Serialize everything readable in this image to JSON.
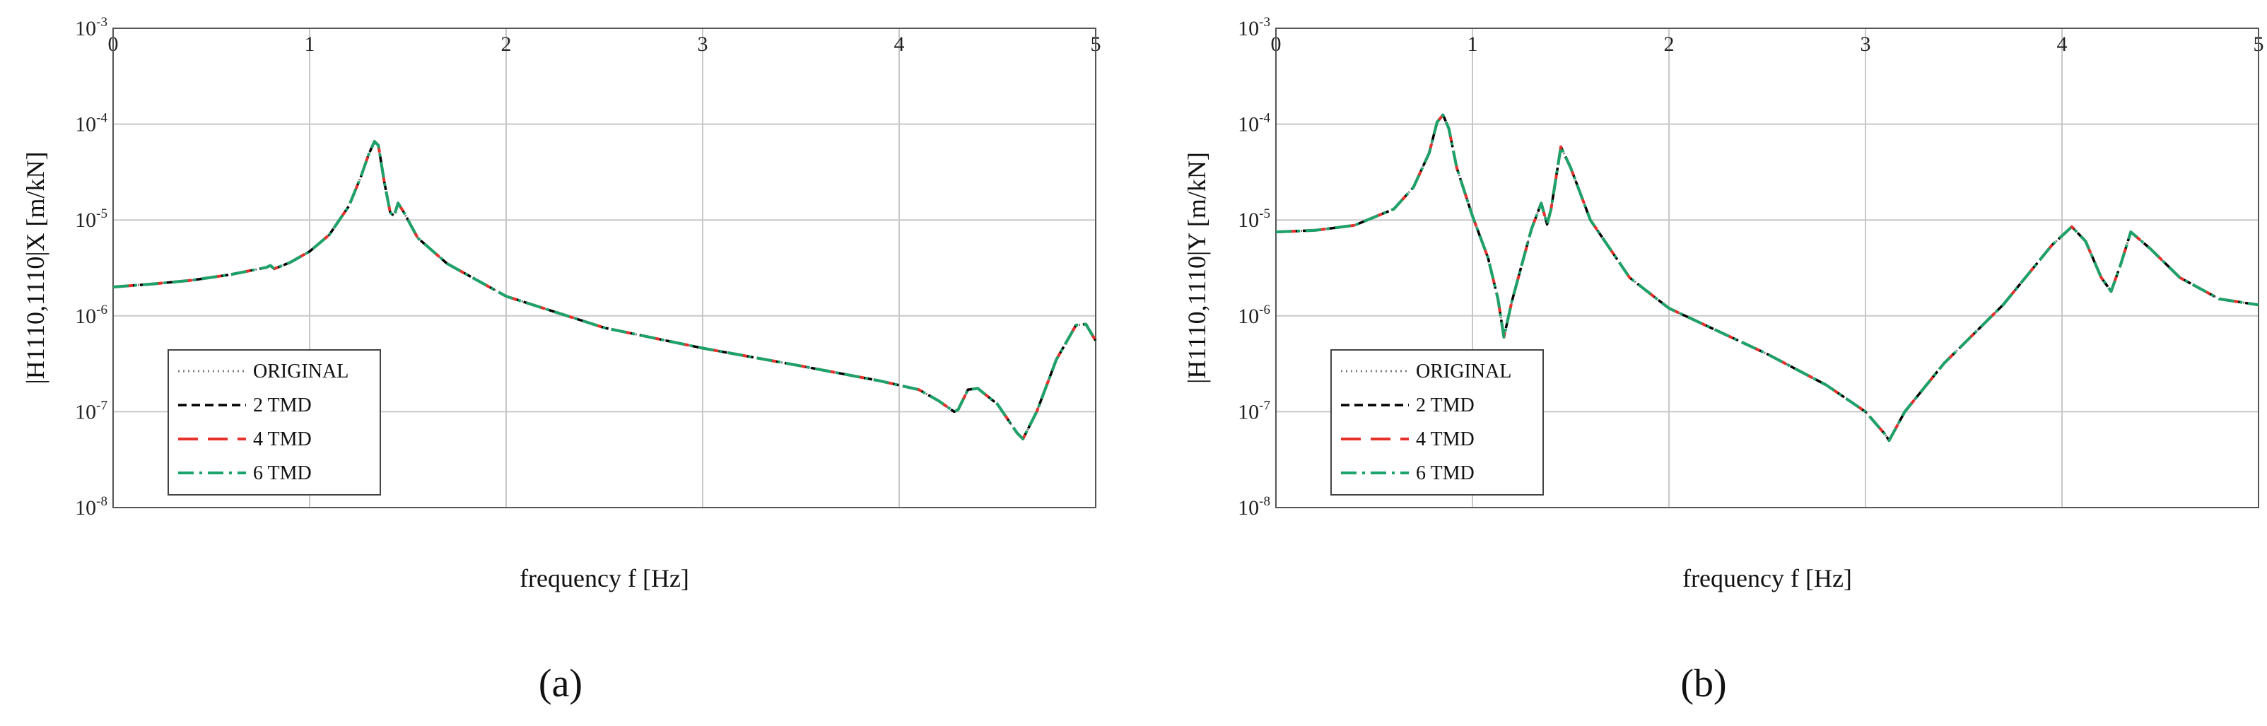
{
  "figure": {
    "panel_labels": [
      "(a)",
      "(b)"
    ]
  },
  "chart_data": [
    {
      "type": "line",
      "panel": "(a)",
      "title": "",
      "xlabel": "frequency f [Hz]",
      "ylabel": "|H1110,1110|X  [m/kN]",
      "xlim": [
        0,
        5
      ],
      "ylim": [
        1e-08,
        0.001
      ],
      "yscale": "log",
      "xticks": [
        "0",
        "1",
        "2",
        "3",
        "4",
        "5"
      ],
      "yticks": [
        {
          "base": "10",
          "exp": "-3"
        },
        {
          "base": "10",
          "exp": "-4"
        },
        {
          "base": "10",
          "exp": "-5"
        },
        {
          "base": "10",
          "exp": "-6"
        },
        {
          "base": "10",
          "exp": "-7"
        },
        {
          "base": "10",
          "exp": "-8"
        }
      ],
      "grid": true,
      "legend_position": "bottom-left",
      "series": [
        {
          "name": "ORIGINAL",
          "color": "#7a7a7a",
          "style": "dotted"
        },
        {
          "name": "2 TMD",
          "color": "#000000",
          "style": "dashed"
        },
        {
          "name": "4 TMD",
          "color": "#e8302a",
          "style": "long-dash"
        },
        {
          "name": "6 TMD",
          "color": "#1aa36b",
          "style": "dash-dot"
        }
      ],
      "x": [
        0,
        0.2,
        0.4,
        0.6,
        0.78,
        0.8,
        0.82,
        0.9,
        1.0,
        1.1,
        1.2,
        1.26,
        1.3,
        1.33,
        1.35,
        1.38,
        1.41,
        1.43,
        1.45,
        1.48,
        1.55,
        1.7,
        2.0,
        2.5,
        3.0,
        3.5,
        3.9,
        4.1,
        4.2,
        4.28,
        4.3,
        4.35,
        4.4,
        4.5,
        4.6,
        4.63,
        4.7,
        4.8,
        4.9,
        4.95,
        5.0
      ],
      "values": [
        2e-06,
        2.15e-06,
        2.35e-06,
        2.7e-06,
        3.2e-06,
        3.35e-06,
        3.1e-06,
        3.6e-06,
        4.7e-06,
        7e-06,
        1.4e-05,
        2.8e-05,
        4.8e-05,
        6.6e-05,
        6e-05,
        2.5e-05,
        1.2e-05,
        1.1e-05,
        1.5e-05,
        1.2e-05,
        6.5e-06,
        3.5e-06,
        1.6e-06,
        7.5e-07,
        4.6e-07,
        3e-07,
        2.1e-07,
        1.7e-07,
        1.3e-07,
        1e-07,
        1.05e-07,
        1.7e-07,
        1.75e-07,
        1.2e-07,
        6e-08,
        5.2e-08,
        1e-07,
        3.5e-07,
        8e-07,
        8.2e-07,
        5.5e-07
      ]
    },
    {
      "type": "line",
      "panel": "(b)",
      "title": "",
      "xlabel": "frequency f [Hz]",
      "ylabel": "|H1110,1110|Y  [m/kN]",
      "xlim": [
        0,
        5
      ],
      "ylim": [
        1e-08,
        0.001
      ],
      "yscale": "log",
      "xticks": [
        "0",
        "1",
        "2",
        "3",
        "4",
        "5"
      ],
      "yticks": [
        {
          "base": "10",
          "exp": "-3"
        },
        {
          "base": "10",
          "exp": "-4"
        },
        {
          "base": "10",
          "exp": "-5"
        },
        {
          "base": "10",
          "exp": "-6"
        },
        {
          "base": "10",
          "exp": "-7"
        },
        {
          "base": "10",
          "exp": "-8"
        }
      ],
      "grid": true,
      "legend_position": "bottom-left",
      "series": [
        {
          "name": "ORIGINAL",
          "color": "#7a7a7a",
          "style": "dotted"
        },
        {
          "name": "2 TMD",
          "color": "#000000",
          "style": "dashed"
        },
        {
          "name": "4 TMD",
          "color": "#e8302a",
          "style": "long-dash"
        },
        {
          "name": "6 TMD",
          "color": "#1aa36b",
          "style": "dash-dot"
        }
      ],
      "x": [
        0,
        0.2,
        0.4,
        0.6,
        0.7,
        0.78,
        0.82,
        0.85,
        0.88,
        0.92,
        1.0,
        1.08,
        1.13,
        1.16,
        1.2,
        1.3,
        1.35,
        1.38,
        1.4,
        1.45,
        1.5,
        1.6,
        1.8,
        2.0,
        2.5,
        2.8,
        3.0,
        3.1,
        3.12,
        3.2,
        3.4,
        3.7,
        3.95,
        4.05,
        4.12,
        4.2,
        4.25,
        4.3,
        4.35,
        4.45,
        4.6,
        4.8,
        5.0
      ],
      "values": [
        7.5e-06,
        7.8e-06,
        8.8e-06,
        1.3e-05,
        2.2e-05,
        5e-05,
        0.000105,
        0.000125,
        9e-05,
        3.5e-05,
        1.1e-05,
        4e-06,
        1.5e-06,
        6e-07,
        1.4e-06,
        8e-06,
        1.5e-05,
        9e-06,
        1.3e-05,
        5.8e-05,
        3.5e-05,
        1e-05,
        2.5e-06,
        1.2e-06,
        4e-07,
        1.9e-07,
        1e-07,
        5.8e-08,
        5e-08,
        1e-07,
        3.2e-07,
        1.3e-06,
        5.5e-06,
        8.5e-06,
        6e-06,
        2.5e-06,
        1.8e-06,
        3.5e-06,
        7.5e-06,
        5e-06,
        2.5e-06,
        1.5e-06,
        1.3e-06
      ]
    }
  ]
}
